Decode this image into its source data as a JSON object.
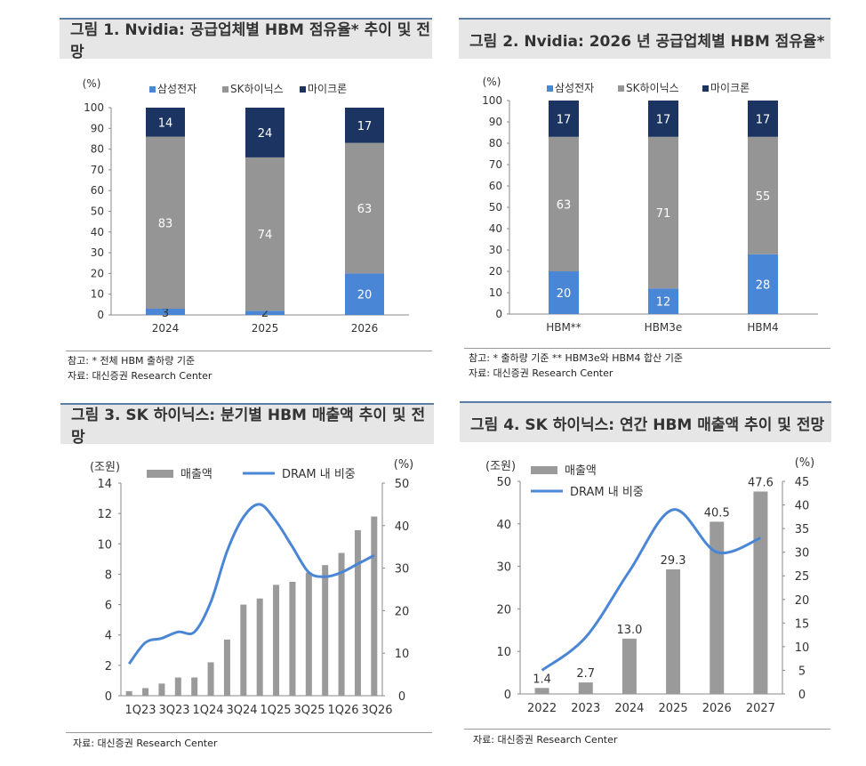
{
  "fig1": {
    "title": "그림 1. Nvidia: 공급업체별 HBM 점유율* 추이 및 전망",
    "note": "참고: * 전체 HBM 출하량 기준",
    "source": "자료: 대신증권 Research Center"
  },
  "fig2": {
    "title": "그림 2. Nvidia: 2026 년 공급업체별 HBM 점유율*",
    "note": "참고: * 출하량 기준 ** HBM3e와 HBM4 합산 기준",
    "source": "자료: 대신증권 Research Center"
  },
  "fig3": {
    "title": "그림 3. SK 하이닉스: 분기별 HBM 매출액 추이 및 전망",
    "source": "자료: 대신증권 Research Center"
  },
  "fig4": {
    "title": "그림 4. SK 하이닉스: 연간 HBM 매출액 추이 및 전망",
    "source": "자료: 대신증권 Research Center"
  },
  "chart_data": [
    {
      "type": "bar",
      "stacked": true,
      "ylabel": "(%)",
      "ylim": [
        0,
        100
      ],
      "yticks": [
        0,
        10,
        20,
        30,
        40,
        50,
        60,
        70,
        80,
        90,
        100
      ],
      "categories": [
        "2024",
        "2025",
        "2026"
      ],
      "legend_position": "top",
      "series": [
        {
          "name": "삼성전자",
          "color": "#4a86d6",
          "values": [
            3,
            2,
            20
          ]
        },
        {
          "name": "SK하이닉스",
          "color": "#959595",
          "values": [
            83,
            74,
            63
          ]
        },
        {
          "name": "마이크론",
          "color": "#1c3461",
          "values": [
            14,
            24,
            17
          ]
        }
      ]
    },
    {
      "type": "bar",
      "stacked": true,
      "ylabel": "(%)",
      "ylim": [
        0,
        100
      ],
      "yticks": [
        0,
        10,
        20,
        30,
        40,
        50,
        60,
        70,
        80,
        90,
        100
      ],
      "categories": [
        "HBM**",
        "HBM3e",
        "HBM4"
      ],
      "legend_position": "top",
      "series": [
        {
          "name": "삼성전자",
          "color": "#4a86d6",
          "values": [
            20,
            12,
            28
          ]
        },
        {
          "name": "SK하이닉스",
          "color": "#959595",
          "values": [
            63,
            71,
            55
          ]
        },
        {
          "name": "마이크론",
          "color": "#1c3461",
          "values": [
            17,
            17,
            17
          ]
        }
      ]
    },
    {
      "type": "bar",
      "ylabel": "(조원)",
      "y2label": "(%)",
      "ylim": [
        0,
        14
      ],
      "yticks": [
        0,
        2,
        4,
        6,
        8,
        10,
        12,
        14
      ],
      "y2lim": [
        0,
        50
      ],
      "y2ticks": [
        0,
        10,
        20,
        30,
        40,
        50
      ],
      "categories": [
        "1Q23",
        "2Q23",
        "3Q23",
        "4Q23",
        "1Q24",
        "2Q24",
        "3Q24",
        "4Q24",
        "1Q25",
        "2Q25",
        "3Q25",
        "4Q25",
        "1Q26",
        "2Q26",
        "3Q26",
        "4Q26"
      ],
      "xtick_labels": [
        "1Q23",
        "3Q23",
        "1Q24",
        "3Q24",
        "1Q25",
        "3Q25",
        "1Q26",
        "3Q26"
      ],
      "legend_position": "top",
      "series": [
        {
          "name": "매출액",
          "type": "bar",
          "axis": "left",
          "color": "#9a9a9a",
          "values": [
            0.3,
            0.5,
            0.8,
            1.2,
            1.2,
            2.2,
            3.7,
            6.0,
            6.4,
            7.3,
            7.5,
            8.1,
            8.6,
            9.4,
            10.9,
            11.8
          ]
        },
        {
          "name": "DRAM 내 비중",
          "type": "line",
          "axis": "right",
          "color": "#4a86d6",
          "values": [
            7.5,
            12.5,
            13.5,
            15,
            15,
            22,
            34,
            42,
            45,
            41,
            35,
            29,
            28,
            29,
            31,
            33
          ]
        }
      ]
    },
    {
      "type": "bar",
      "ylabel": "(조원)",
      "y2label": "(%)",
      "ylim": [
        0,
        50
      ],
      "yticks": [
        0,
        10,
        20,
        30,
        40,
        50
      ],
      "y2lim": [
        0,
        45
      ],
      "y2ticks": [
        0,
        5,
        10,
        15,
        20,
        25,
        30,
        35,
        40,
        45
      ],
      "categories": [
        "2022",
        "2023",
        "2024",
        "2025",
        "2026",
        "2027"
      ],
      "legend_position": "top-left",
      "series": [
        {
          "name": "매출액",
          "type": "bar",
          "axis": "left",
          "color": "#9a9a9a",
          "values": [
            1.4,
            2.7,
            13.0,
            29.3,
            40.5,
            47.6
          ],
          "labels": [
            "1.4",
            "2.7",
            "13.0",
            "29.3",
            "40.5",
            "47.6"
          ]
        },
        {
          "name": "DRAM 내 비중",
          "type": "line",
          "axis": "right",
          "color": "#4a86d6",
          "values": [
            5,
            12,
            26,
            39,
            30,
            33
          ]
        }
      ]
    }
  ]
}
